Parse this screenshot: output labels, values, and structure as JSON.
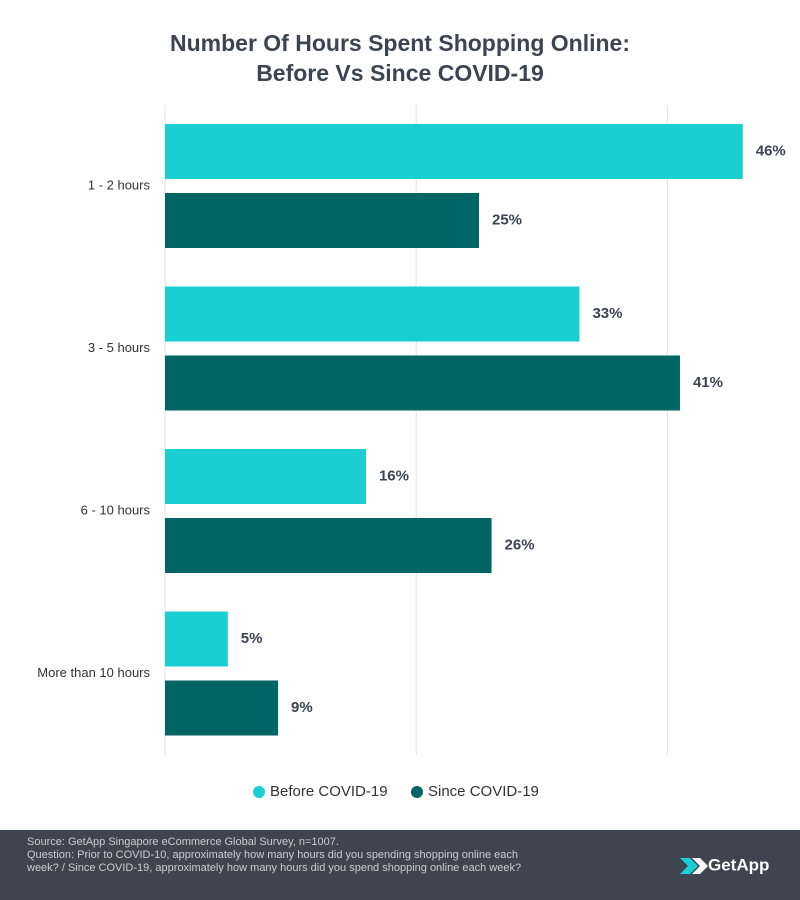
{
  "chart_data": {
    "type": "hbar",
    "title": [
      "Number Of Hours Spent Shopping Online:",
      "Before Vs Since COVID-19"
    ],
    "categories": [
      "1 - 2 hours",
      "3 - 5 hours",
      "6 - 10 hours",
      "More than 10 hours"
    ],
    "series": [
      {
        "name": "Before COVID-19",
        "color": "#1acfd1",
        "values": [
          46,
          33,
          16,
          5
        ],
        "value_labels": [
          "46%",
          "33%",
          "16%",
          "5%"
        ]
      },
      {
        "name": "Since COVID-19",
        "color": "#006564",
        "values": [
          25,
          41,
          26,
          9
        ],
        "value_labels": [
          "25%",
          "41%",
          "26%",
          "9%"
        ]
      }
    ],
    "xlim": [
      0,
      50
    ],
    "xticks": [
      0,
      20,
      40
    ],
    "grid": true
  },
  "footer": {
    "source": [
      "Source: GetApp Singapore eCommerce Global Survey, n=1007.",
      "Question: Prior to COVID-10, approximately how many hours did you spending shopping online each",
      "week? / Since COVID-19, approximately how many hours did you spend shopping online each week?"
    ],
    "logo": "GetApp"
  }
}
